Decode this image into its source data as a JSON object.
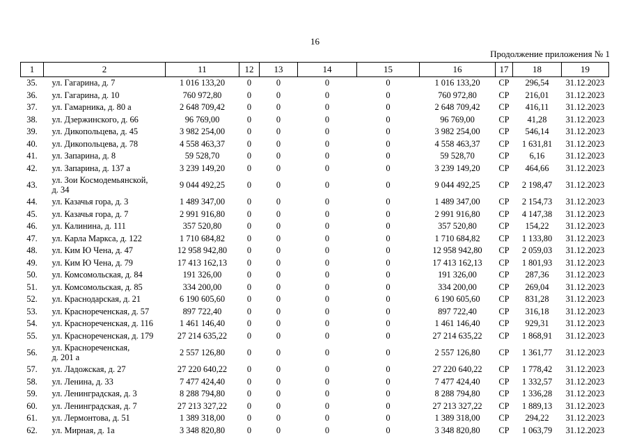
{
  "page": {
    "page_number": "16",
    "continuation_label": "Продолжение приложения № 1"
  },
  "table": {
    "column_headers": [
      "1",
      "2",
      "11",
      "12",
      "13",
      "14",
      "15",
      "16",
      "17",
      "18",
      "19"
    ],
    "rows": [
      {
        "num": "35.",
        "address_lines": [
          "ул. Гагарина, д. 7"
        ],
        "c11": "1 016 133,20",
        "c12": "0",
        "c13": "0",
        "c14": "0",
        "c15": "0",
        "c16": "1 016 133,20",
        "c17": "СР",
        "c18": "296,54",
        "c19": "31.12.2023"
      },
      {
        "num": "36.",
        "address_lines": [
          "ул. Гагарина, д. 10"
        ],
        "c11": "760 972,80",
        "c12": "0",
        "c13": "0",
        "c14": "0",
        "c15": "0",
        "c16": "760 972,80",
        "c17": "СР",
        "c18": "216,01",
        "c19": "31.12.2023"
      },
      {
        "num": "37.",
        "address_lines": [
          "ул. Гамарника, д. 80 а"
        ],
        "c11": "2 648 709,42",
        "c12": "0",
        "c13": "0",
        "c14": "0",
        "c15": "0",
        "c16": "2 648 709,42",
        "c17": "СР",
        "c18": "416,11",
        "c19": "31.12.2023"
      },
      {
        "num": "38.",
        "address_lines": [
          "ул. Дзержинского, д. 66"
        ],
        "c11": "96 769,00",
        "c12": "0",
        "c13": "0",
        "c14": "0",
        "c15": "0",
        "c16": "96 769,00",
        "c17": "СР",
        "c18": "41,28",
        "c19": "31.12.2023"
      },
      {
        "num": "39.",
        "address_lines": [
          "ул. Дикопольцева, д. 45"
        ],
        "c11": "3 982 254,00",
        "c12": "0",
        "c13": "0",
        "c14": "0",
        "c15": "0",
        "c16": "3 982 254,00",
        "c17": "СР",
        "c18": "546,14",
        "c19": "31.12.2023"
      },
      {
        "num": "40.",
        "address_lines": [
          "ул. Дикопольцева, д. 78"
        ],
        "c11": "4 558 463,37",
        "c12": "0",
        "c13": "0",
        "c14": "0",
        "c15": "0",
        "c16": "4 558 463,37",
        "c17": "СР",
        "c18": "1 631,81",
        "c19": "31.12.2023"
      },
      {
        "num": "41.",
        "address_lines": [
          "ул. Запарина, д. 8"
        ],
        "c11": "59 528,70",
        "c12": "0",
        "c13": "0",
        "c14": "0",
        "c15": "0",
        "c16": "59 528,70",
        "c17": "СР",
        "c18": "6,16",
        "c19": "31.12.2023"
      },
      {
        "num": "42.",
        "address_lines": [
          "ул. Запарина, д. 137 а"
        ],
        "c11": "3 239 149,20",
        "c12": "0",
        "c13": "0",
        "c14": "0",
        "c15": "0",
        "c16": "3 239 149,20",
        "c17": "СР",
        "c18": "464,66",
        "c19": "31.12.2023"
      },
      {
        "num": "43.",
        "address_lines": [
          "ул. Зои Космодемьянской,",
          "д. 34"
        ],
        "c11": "9 044 492,25",
        "c12": "0",
        "c13": "0",
        "c14": "0",
        "c15": "0",
        "c16": "9 044 492,25",
        "c17": "СР",
        "c18": "2 198,47",
        "c19": "31.12.2023"
      },
      {
        "num": "44.",
        "address_lines": [
          "ул. Казачья гора, д. 3"
        ],
        "c11": "1 489 347,00",
        "c12": "0",
        "c13": "0",
        "c14": "0",
        "c15": "0",
        "c16": "1 489 347,00",
        "c17": "СР",
        "c18": "2 154,73",
        "c19": "31.12.2023"
      },
      {
        "num": "45.",
        "address_lines": [
          "ул. Казачья гора, д. 7"
        ],
        "c11": "2 991 916,80",
        "c12": "0",
        "c13": "0",
        "c14": "0",
        "c15": "0",
        "c16": "2 991 916,80",
        "c17": "СР",
        "c18": "4 147,38",
        "c19": "31.12.2023"
      },
      {
        "num": "46.",
        "address_lines": [
          "ул. Калинина, д. 111"
        ],
        "c11": "357 520,80",
        "c12": "0",
        "c13": "0",
        "c14": "0",
        "c15": "0",
        "c16": "357 520,80",
        "c17": "СР",
        "c18": "154,22",
        "c19": "31.12.2023"
      },
      {
        "num": "47.",
        "address_lines": [
          "ул. Карла Маркса, д. 122"
        ],
        "c11": "1 710 684,82",
        "c12": "0",
        "c13": "0",
        "c14": "0",
        "c15": "0",
        "c16": "1 710 684,82",
        "c17": "СР",
        "c18": "1 133,80",
        "c19": "31.12.2023"
      },
      {
        "num": "48.",
        "address_lines": [
          "ул. Ким Ю Чена, д. 47"
        ],
        "c11": "12 958 942,80",
        "c12": "0",
        "c13": "0",
        "c14": "0",
        "c15": "0",
        "c16": "12 958 942,80",
        "c17": "СР",
        "c18": "2 059,03",
        "c19": "31.12.2023"
      },
      {
        "num": "49.",
        "address_lines": [
          "ул. Ким Ю Чена, д. 79"
        ],
        "c11": "17 413 162,13",
        "c12": "0",
        "c13": "0",
        "c14": "0",
        "c15": "0",
        "c16": "17 413 162,13",
        "c17": "СР",
        "c18": "1 801,93",
        "c19": "31.12.2023"
      },
      {
        "num": "50.",
        "address_lines": [
          "ул. Комсомольская, д. 84"
        ],
        "c11": "191 326,00",
        "c12": "0",
        "c13": "0",
        "c14": "0",
        "c15": "0",
        "c16": "191 326,00",
        "c17": "СР",
        "c18": "287,36",
        "c19": "31.12.2023"
      },
      {
        "num": "51.",
        "address_lines": [
          "ул. Комсомольская, д. 85"
        ],
        "c11": "334 200,00",
        "c12": "0",
        "c13": "0",
        "c14": "0",
        "c15": "0",
        "c16": "334 200,00",
        "c17": "СР",
        "c18": "269,04",
        "c19": "31.12.2023"
      },
      {
        "num": "52.",
        "address_lines": [
          "ул. Краснодарская, д. 21"
        ],
        "c11": "6 190 605,60",
        "c12": "0",
        "c13": "0",
        "c14": "0",
        "c15": "0",
        "c16": "6 190 605,60",
        "c17": "СР",
        "c18": "831,28",
        "c19": "31.12.2023"
      },
      {
        "num": "53.",
        "address_lines": [
          "ул. Краснореченская, д. 57"
        ],
        "c11": "897 722,40",
        "c12": "0",
        "c13": "0",
        "c14": "0",
        "c15": "0",
        "c16": "897 722,40",
        "c17": "СР",
        "c18": "316,18",
        "c19": "31.12.2023"
      },
      {
        "num": "54.",
        "address_lines": [
          "ул. Краснореченская, д. 116"
        ],
        "c11": "1 461 146,40",
        "c12": "0",
        "c13": "0",
        "c14": "0",
        "c15": "0",
        "c16": "1 461 146,40",
        "c17": "СР",
        "c18": "929,31",
        "c19": "31.12.2023"
      },
      {
        "num": "55.",
        "address_lines": [
          "ул. Краснореченская, д. 179"
        ],
        "c11": "27 214 635,22",
        "c12": "0",
        "c13": "0",
        "c14": "0",
        "c15": "0",
        "c16": "27 214 635,22",
        "c17": "СР",
        "c18": "1 868,91",
        "c19": "31.12.2023"
      },
      {
        "num": "56.",
        "address_lines": [
          "ул. Краснореченская,",
          "д. 201 а"
        ],
        "c11": "2 557 126,80",
        "c12": "0",
        "c13": "0",
        "c14": "0",
        "c15": "0",
        "c16": "2 557 126,80",
        "c17": "СР",
        "c18": "1 361,77",
        "c19": "31.12.2023"
      },
      {
        "num": "57.",
        "address_lines": [
          "ул. Ладожская, д. 27"
        ],
        "c11": "27 220 640,22",
        "c12": "0",
        "c13": "0",
        "c14": "0",
        "c15": "0",
        "c16": "27 220 640,22",
        "c17": "СР",
        "c18": "1 778,42",
        "c19": "31.12.2023"
      },
      {
        "num": "58.",
        "address_lines": [
          "ул. Ленина, д. 33"
        ],
        "c11": "7 477 424,40",
        "c12": "0",
        "c13": "0",
        "c14": "0",
        "c15": "0",
        "c16": "7 477 424,40",
        "c17": "СР",
        "c18": "1 332,57",
        "c19": "31.12.2023"
      },
      {
        "num": "59.",
        "address_lines": [
          "ул. Ленинградская, д. 3"
        ],
        "c11": "8 288 794,80",
        "c12": "0",
        "c13": "0",
        "c14": "0",
        "c15": "0",
        "c16": "8 288 794,80",
        "c17": "СР",
        "c18": "1 336,28",
        "c19": "31.12.2023"
      },
      {
        "num": "60.",
        "address_lines": [
          "ул. Ленинградская, д. 7"
        ],
        "c11": "27 213 327,22",
        "c12": "0",
        "c13": "0",
        "c14": "0",
        "c15": "0",
        "c16": "27 213 327,22",
        "c17": "СР",
        "c18": "1 889,13",
        "c19": "31.12.2023"
      },
      {
        "num": "61.",
        "address_lines": [
          "ул. Лермонтова, д. 51"
        ],
        "c11": "1 389 318,00",
        "c12": "0",
        "c13": "0",
        "c14": "0",
        "c15": "0",
        "c16": "1 389 318,00",
        "c17": "СР",
        "c18": "294,22",
        "c19": "31.12.2023"
      },
      {
        "num": "62.",
        "address_lines": [
          "ул. Мирная, д. 1а"
        ],
        "c11": "3 348 820,80",
        "c12": "0",
        "c13": "0",
        "c14": "0",
        "c15": "0",
        "c16": "3 348 820,80",
        "c17": "СР",
        "c18": "1 063,79",
        "c19": "31.12.2023"
      }
    ]
  }
}
